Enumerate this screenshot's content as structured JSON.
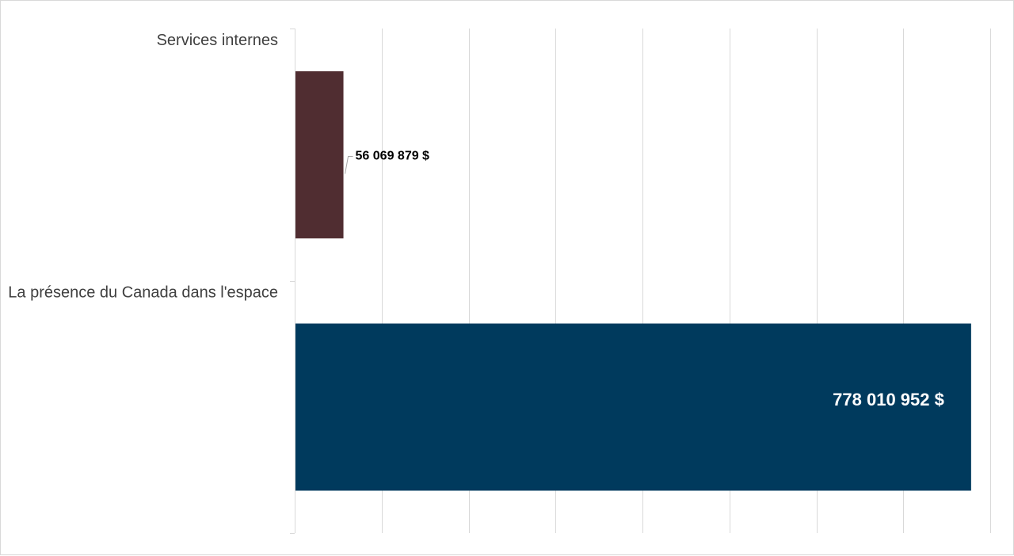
{
  "chart_data": {
    "type": "bar",
    "orientation": "horizontal",
    "categories": [
      "Services internes",
      "La présence du Canada dans l'espace"
    ],
    "values": [
      56069879,
      778010952
    ],
    "value_labels": [
      "56 069 879 $",
      "778 010 952 $"
    ],
    "bar_colors": [
      "#502d31",
      "#003a5d"
    ],
    "xlim": [
      0,
      800000000
    ],
    "x_tick_count": 8,
    "grid": true,
    "legend": "none",
    "title": "",
    "xlabel": "",
    "ylabel": ""
  },
  "colors": {
    "grid": "#d9d9d9",
    "axis": "#d9d9d9",
    "category_text": "#404040",
    "label_leader": "#a6a6a6"
  }
}
